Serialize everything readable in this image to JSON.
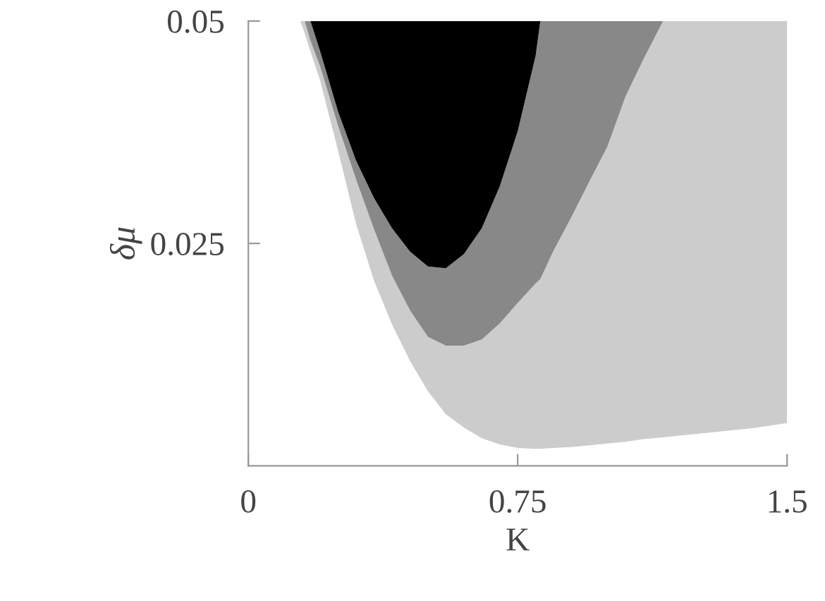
{
  "chart_data": {
    "type": "area",
    "stacked": true,
    "xlabel": "K",
    "ylabel": "δμ",
    "xlim": [
      0,
      1.5
    ],
    "ylim": [
      0,
      0.05
    ],
    "xticks": [
      0,
      0.75,
      1.5
    ],
    "yticks": [
      0.025,
      0.05
    ],
    "grid": false,
    "legend": false,
    "x": [
      0,
      0.145,
      0.157,
      0.173,
      0.2,
      0.25,
      0.3,
      0.35,
      0.4,
      0.45,
      0.5,
      0.55,
      0.6,
      0.65,
      0.7,
      0.75,
      0.8,
      0.813,
      0.85,
      0.9,
      0.95,
      1.0,
      1.05,
      1.1,
      1.155,
      1.2,
      1.25,
      1.3,
      1.35,
      1.4,
      1.45,
      1.5
    ],
    "series": [
      {
        "color": "#ffffff",
        "values": [
          0.05,
          0.05,
          0.0486,
          0.0466,
          0.0433,
          0.0354,
          0.0272,
          0.0208,
          0.0159,
          0.0118,
          0.0084,
          0.0058,
          0.0043,
          0.0031,
          0.0024,
          0.002,
          0.0019,
          0.0019,
          0.002,
          0.0021,
          0.0023,
          0.0025,
          0.0027,
          0.003,
          0.0032,
          0.0034,
          0.0036,
          0.0038,
          0.004,
          0.0042,
          0.0045,
          0.0048
        ]
      },
      {
        "color": "#cccccc",
        "values": [
          0,
          0,
          0.0014,
          0.0012,
          0.0016,
          0.0028,
          0.005,
          0.0058,
          0.0055,
          0.0057,
          0.0061,
          0.0077,
          0.0092,
          0.0111,
          0.0136,
          0.0163,
          0.0186,
          0.0191,
          0.0222,
          0.0259,
          0.0297,
          0.0334,
          0.0388,
          0.0427,
          0.0468,
          0.0466,
          0.0464,
          0.0462,
          0.046,
          0.0458,
          0.0455,
          0.0452
        ]
      },
      {
        "color": "#888888",
        "values": [
          0,
          0,
          0,
          0.0022,
          0.0017,
          0.0016,
          0.0021,
          0.0035,
          0.0053,
          0.0066,
          0.0079,
          0.0087,
          0.0103,
          0.0125,
          0.0154,
          0.0193,
          0.0256,
          0.029,
          0.0258,
          0.022,
          0.018,
          0.0141,
          0.0085,
          0.0043,
          0,
          0,
          0,
          0,
          0,
          0,
          0,
          0
        ]
      },
      {
        "color": "#000000",
        "values": [
          0,
          0,
          0,
          0,
          0.0034,
          0.0102,
          0.0157,
          0.0199,
          0.0233,
          0.0259,
          0.0276,
          0.0278,
          0.0262,
          0.0233,
          0.0186,
          0.0124,
          0.0039,
          0,
          0,
          0,
          0,
          0,
          0,
          0,
          0,
          0,
          0,
          0,
          0,
          0,
          0,
          0
        ]
      }
    ]
  }
}
